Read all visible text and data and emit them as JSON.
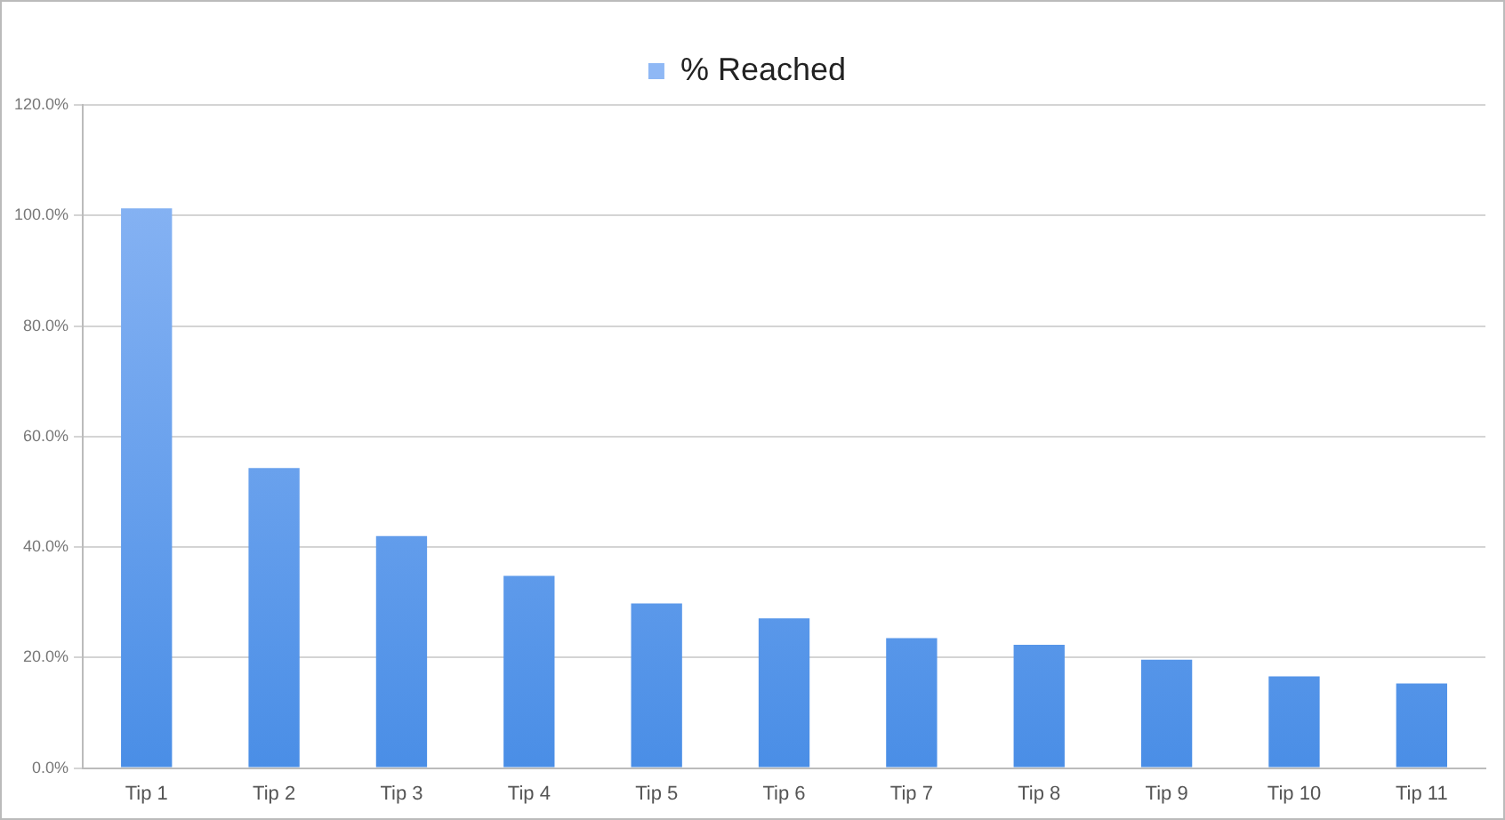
{
  "chart_data": {
    "type": "bar",
    "categories": [
      "Tip 1",
      "Tip 2",
      "Tip 3",
      "Tip 4",
      "Tip 5",
      "Tip 6",
      "Tip 7",
      "Tip 8",
      "Tip 9",
      "Tip 10",
      "Tip 11"
    ],
    "series": [
      {
        "name": "% Reached",
        "color": "#4a8ee6",
        "values": [
          101.3,
          54.3,
          42.0,
          34.8,
          29.8,
          27.1,
          23.5,
          22.3,
          19.6,
          16.6,
          15.3
        ]
      }
    ],
    "ylim": [
      0,
      120
    ],
    "yticks": [
      {
        "value": 0,
        "label": "0.0%"
      },
      {
        "value": 20,
        "label": "20.0%"
      },
      {
        "value": 40,
        "label": "40.0%"
      },
      {
        "value": 60,
        "label": "60.0%"
      },
      {
        "value": 80,
        "label": "80.0%"
      },
      {
        "value": 100,
        "label": "100.0%"
      },
      {
        "value": 120,
        "label": "120.0%"
      }
    ],
    "grid": "y",
    "legend": "top"
  }
}
